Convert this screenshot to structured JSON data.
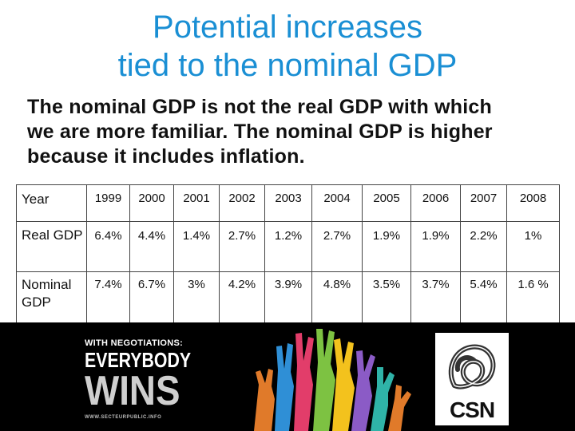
{
  "title": {
    "line1": "Potential increases",
    "line2": "tied to the nominal GDP"
  },
  "subtitle": {
    "line1": "The nominal GDP is not the real GDP with which",
    "line2": "we are more familiar. The nominal GDP is higher",
    "line3": "because it includes inflation."
  },
  "table": {
    "rows": [
      {
        "label": "Year",
        "values": [
          "1999",
          "2000",
          "2001",
          "2002",
          "2003",
          "2004",
          "2005",
          "2006",
          "2007",
          "2008"
        ]
      },
      {
        "label": "Real GDP",
        "values": [
          "6.4%",
          "4.4%",
          "1.4%",
          "2.7%",
          "1.2%",
          "2.7%",
          "1.9%",
          "1.9%",
          "2.2%",
          "1%"
        ]
      },
      {
        "label": "Nominal GDP",
        "values": [
          "7.4%",
          "6.7%",
          "3%",
          "4.2%",
          "3.9%",
          "4.8%",
          "3.5%",
          "3.7%",
          "5.4%",
          "1.6 %"
        ]
      }
    ]
  },
  "banner": {
    "slogan_line1": "WITH NEGOTIATIONS:",
    "slogan_line2": "EVERYBODY",
    "slogan_line3": "WINS",
    "slogan_url": "WWW.SECTEURPUBLIC.INFO",
    "logo_text": "CSN",
    "colors": {
      "background": "#000000",
      "title": "#1a8fd4"
    },
    "icons": [
      "raised-hands-illustration",
      "csn-knot-logo"
    ]
  }
}
